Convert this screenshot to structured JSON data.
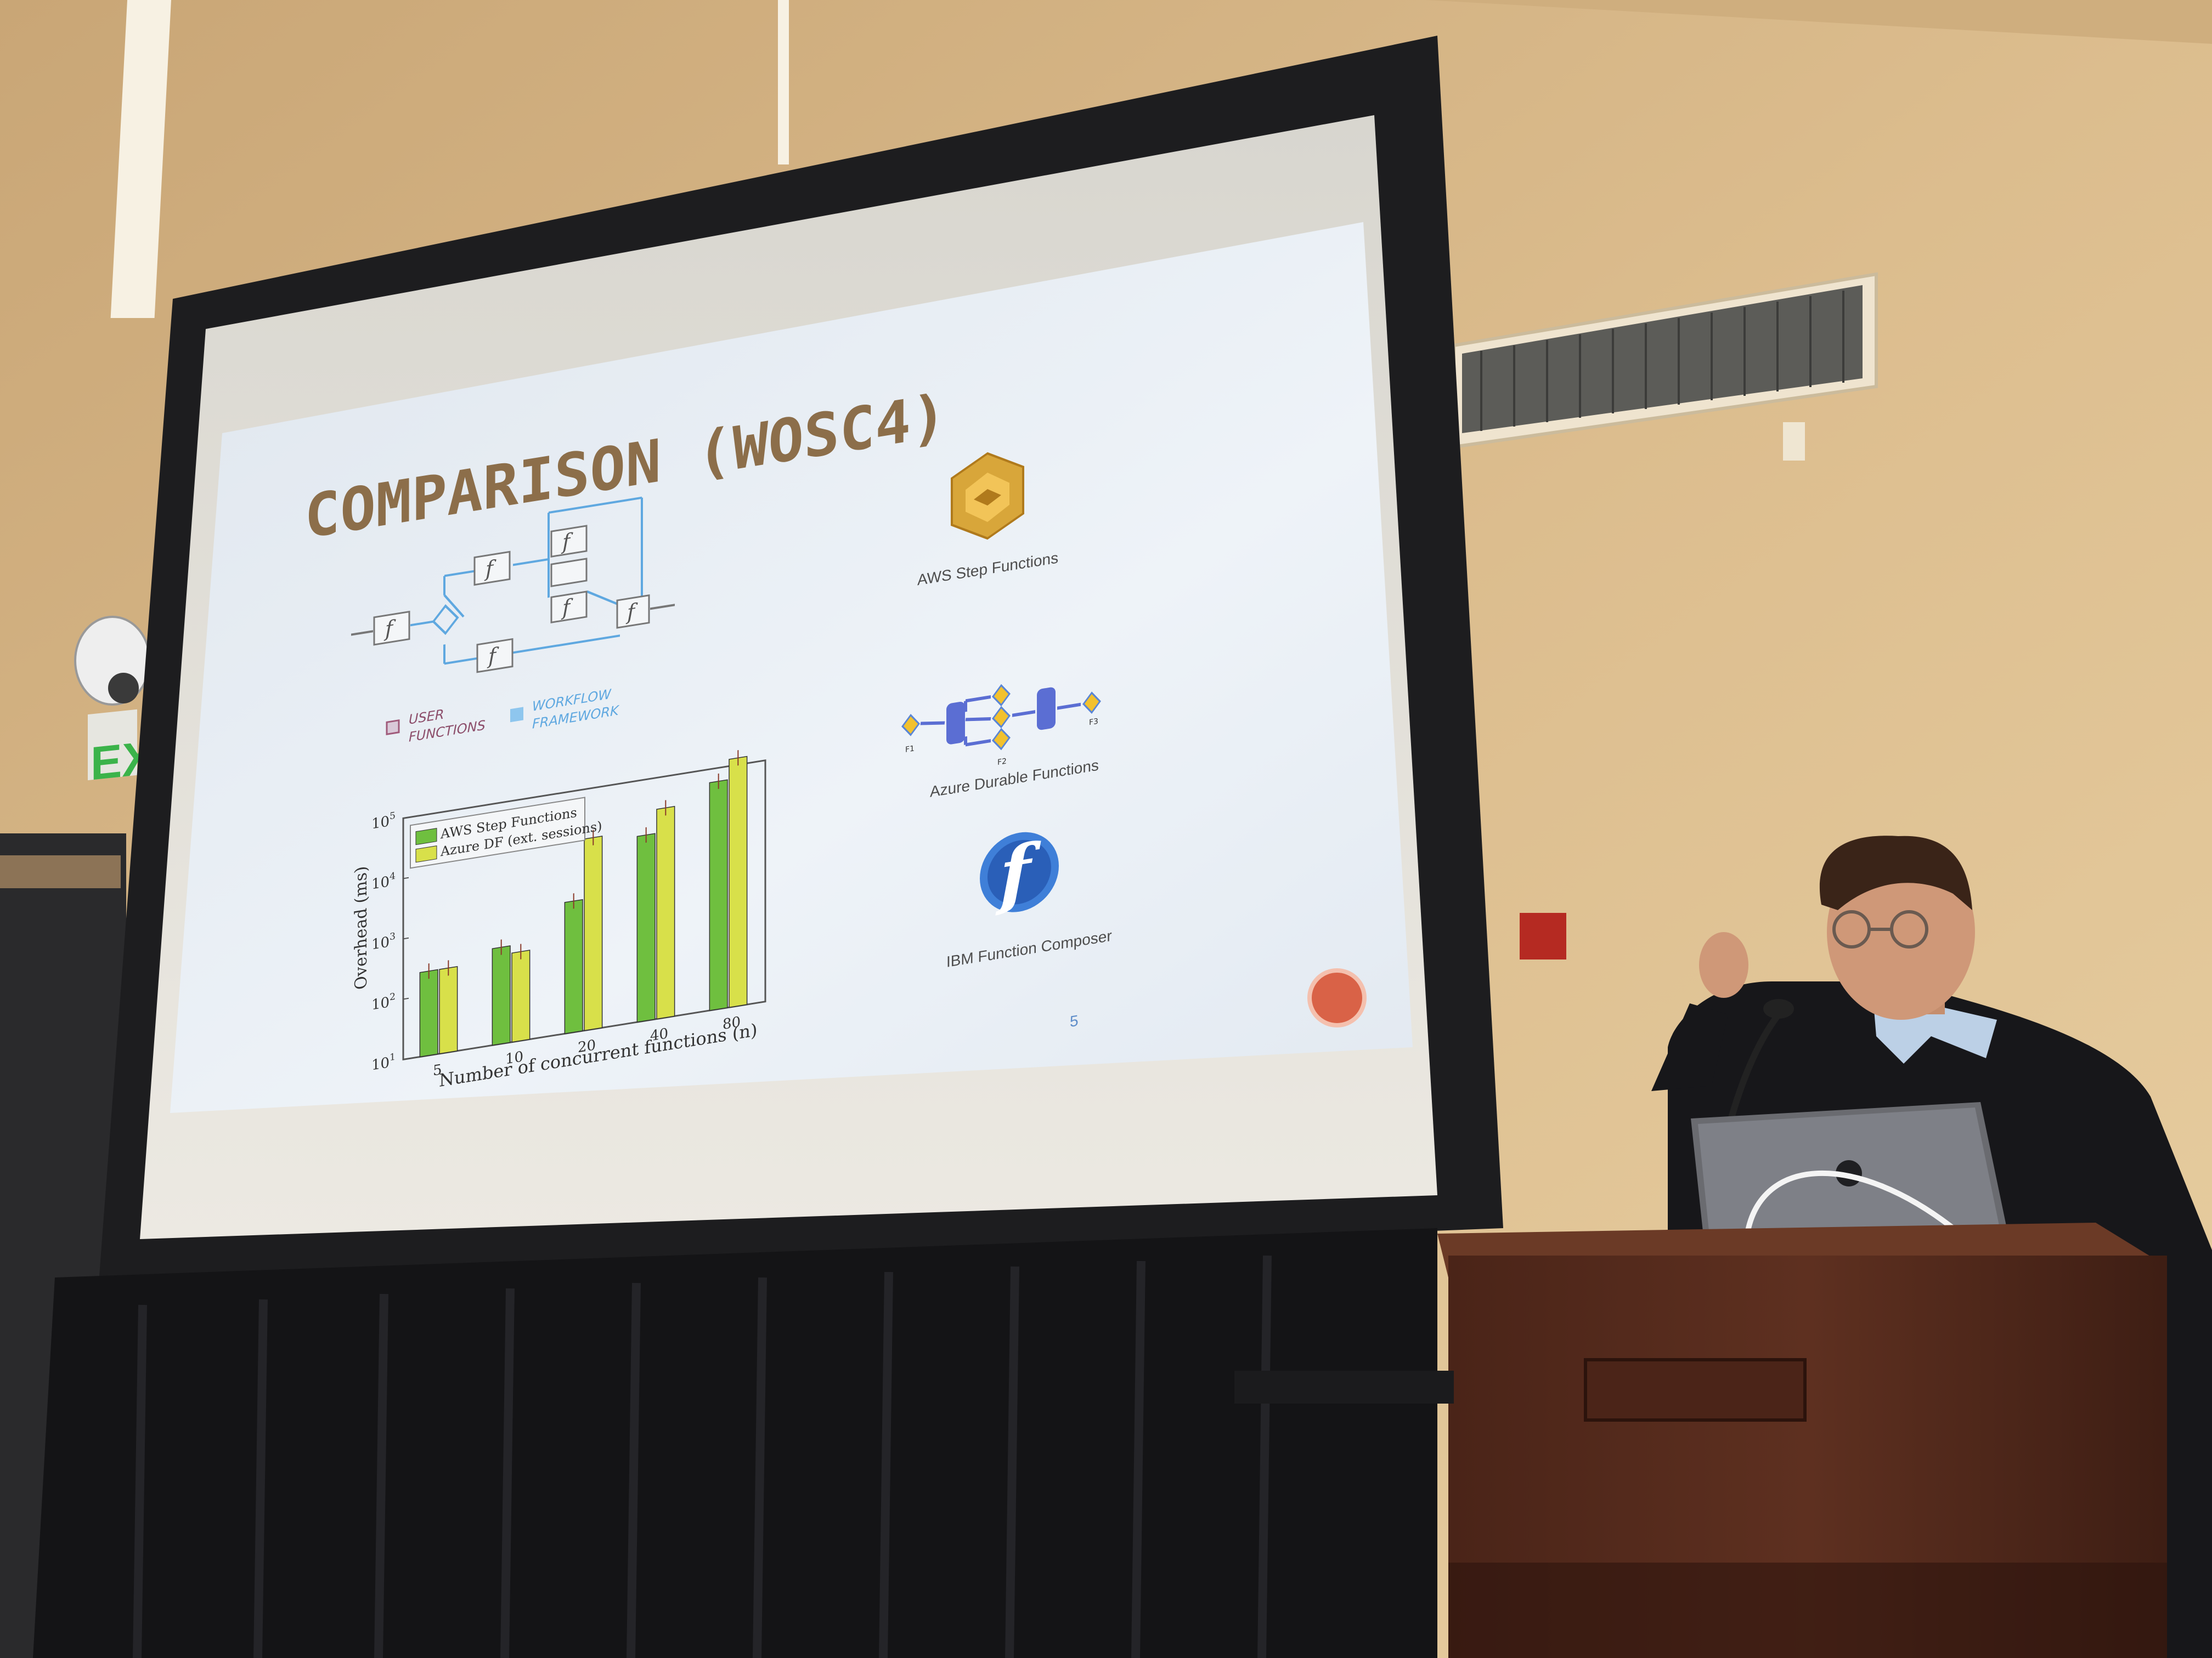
{
  "room": {
    "exit_sign": "EXI"
  },
  "slide": {
    "title": "COMPARISON (WOSC4)",
    "page_number": "5",
    "diagram": {
      "node_label": "f",
      "legend_user": [
        "USER",
        "FUNCTIONS"
      ],
      "legend_framework": [
        "WORKFLOW",
        "FRAMEWORK"
      ]
    },
    "logos": {
      "aws": "AWS Step Functions",
      "azure": "Azure Durable Functions",
      "azure_nodes": [
        "F1",
        "F2",
        "F3"
      ],
      "ibm": "IBM  Function Composer",
      "ibm_glyph": "f"
    }
  },
  "chart_data": {
    "type": "bar",
    "categories": [
      "5",
      "10",
      "20",
      "40",
      "80"
    ],
    "series": [
      {
        "name": "AWS Step Functions",
        "values": [
          250,
          400,
          1500,
          12000,
          60000
        ]
      },
      {
        "name": "Azure DF (ext. sessions)",
        "values": [
          250,
          300,
          15000,
          30000,
          130000
        ]
      }
    ],
    "xlabel": "Number of concurrent functions (n)",
    "ylabel": "Overhead (ms)",
    "yscale": "log",
    "ylim": [
      10,
      100000
    ],
    "yticks": [
      {
        "base": "10",
        "exp": "1",
        "value": 10
      },
      {
        "base": "10",
        "exp": "2",
        "value": 100
      },
      {
        "base": "10",
        "exp": "3",
        "value": 1000
      },
      {
        "base": "10",
        "exp": "4",
        "value": 10000
      },
      {
        "base": "10",
        "exp": "5",
        "value": 100000
      }
    ],
    "legend_placement": "top-left",
    "colors": {
      "aws": "#6fbf3f",
      "azure": "#d8e04a"
    }
  }
}
